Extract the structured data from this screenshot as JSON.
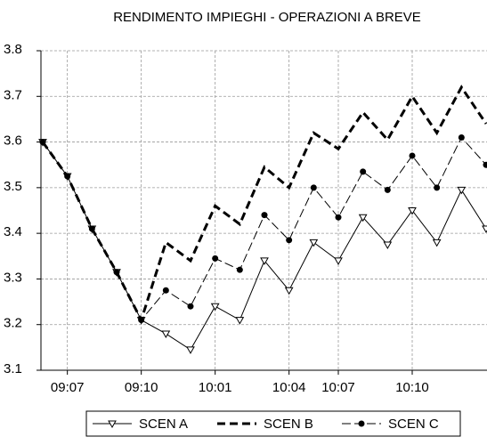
{
  "chart_data": {
    "type": "line",
    "title": "RENDIMENTO IMPIEGHI - OPERAZIONI A BREVE",
    "categories": [
      null,
      "09:07",
      null,
      null,
      "09:10",
      null,
      null,
      "10:01",
      null,
      null,
      "10:04",
      null,
      "10:07",
      null,
      null,
      "10:10",
      null,
      null,
      null
    ],
    "series": [
      {
        "name": "SCEN A",
        "color": "#000000",
        "line_style": "solid",
        "line_width": 1,
        "marker": "triangle-down",
        "values": [
          3.6,
          3.525,
          3.41,
          3.315,
          3.21,
          3.18,
          3.145,
          3.24,
          3.21,
          3.34,
          3.275,
          3.38,
          3.34,
          3.435,
          3.375,
          3.45,
          3.38,
          3.495,
          3.41
        ]
      },
      {
        "name": "SCEN B",
        "color": "#000000",
        "line_style": "dashed",
        "line_width": 3,
        "marker": "none",
        "values": [
          3.6,
          3.525,
          3.41,
          3.315,
          3.21,
          3.38,
          3.34,
          3.46,
          3.42,
          3.545,
          3.5,
          3.62,
          3.585,
          3.665,
          3.605,
          3.7,
          3.62,
          3.72,
          3.64
        ]
      },
      {
        "name": "SCEN C",
        "color": "#000000",
        "line_style": "dashed",
        "line_width": 1,
        "marker": "circle",
        "values": [
          3.6,
          3.525,
          3.41,
          3.315,
          3.21,
          3.275,
          3.24,
          3.345,
          3.32,
          3.44,
          3.385,
          3.5,
          3.435,
          3.535,
          3.495,
          3.57,
          3.5,
          3.61,
          3.55
        ]
      }
    ],
    "ylim": [
      3.1,
      3.8
    ],
    "yticks": [
      3.1,
      3.2,
      3.3,
      3.4,
      3.5,
      3.6,
      3.7,
      3.8
    ],
    "grid": true,
    "legend": "bottom"
  }
}
